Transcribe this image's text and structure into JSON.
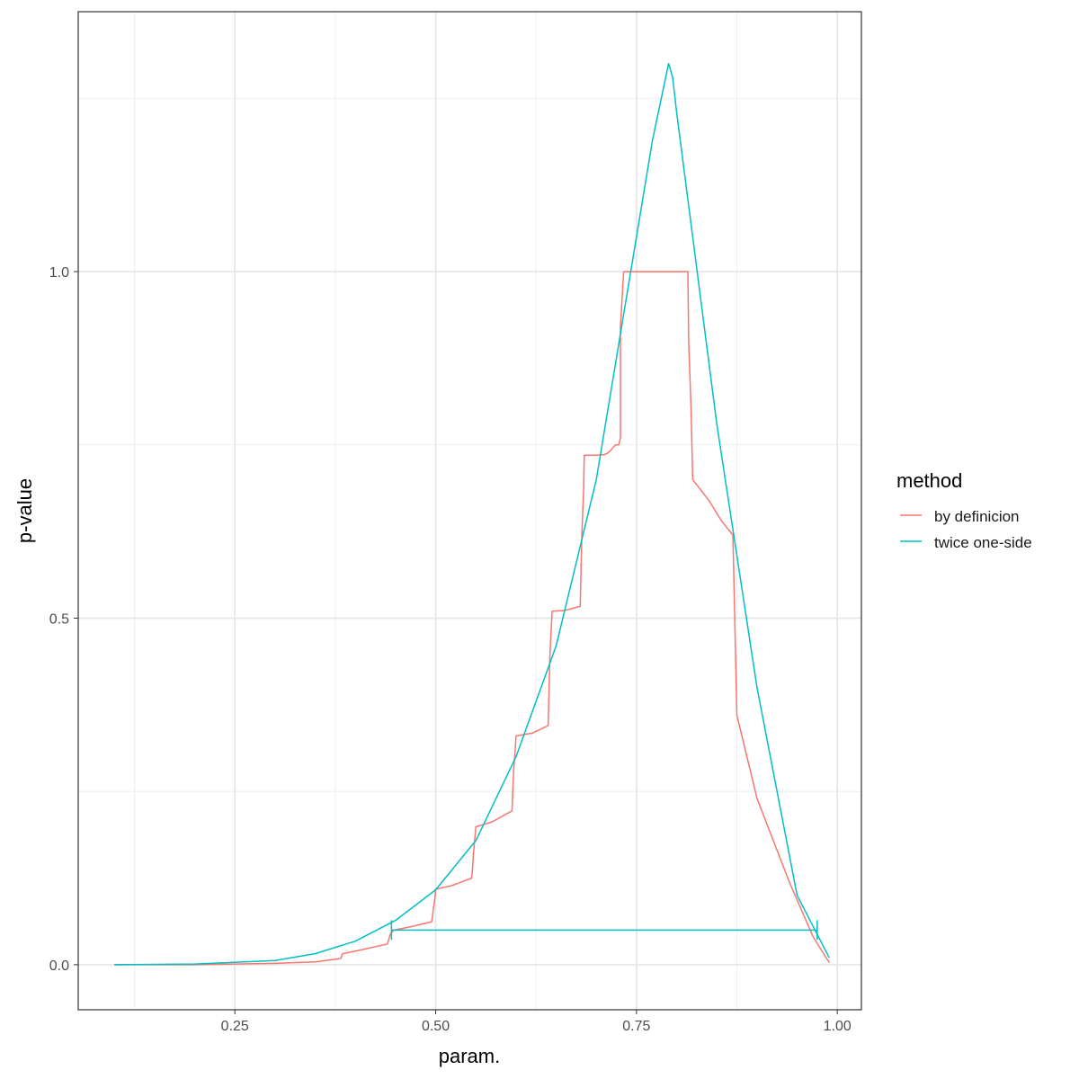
{
  "chart_data": {
    "type": "line",
    "xlabel": "param.",
    "ylabel": "p-value",
    "xlim": [
      0.055,
      1.03
    ],
    "ylim": [
      -0.065,
      1.375
    ],
    "x_ticks": [
      0.25,
      0.5,
      0.75,
      1.0
    ],
    "x_tick_labels": [
      "0.25",
      "0.50",
      "0.75",
      "1.00"
    ],
    "y_ticks": [
      0.0,
      0.5,
      1.0
    ],
    "y_tick_labels": [
      "0.0",
      "0.5",
      "1.0"
    ],
    "grid": true,
    "legend": {
      "title": "method",
      "position": "right",
      "entries": [
        {
          "name": "by definicion",
          "color": "#F8766D"
        },
        {
          "name": "twice one-side",
          "color": "#00BFC4"
        }
      ]
    },
    "series": [
      {
        "name": "by definicion",
        "color": "#F8766D",
        "x": [
          0.1,
          0.2,
          0.3,
          0.35,
          0.382,
          0.384,
          0.41,
          0.44,
          0.442,
          0.444,
          0.448,
          0.47,
          0.495,
          0.496,
          0.497,
          0.499,
          0.5,
          0.52,
          0.545,
          0.546,
          0.547,
          0.549,
          0.55,
          0.57,
          0.595,
          0.596,
          0.597,
          0.599,
          0.6,
          0.62,
          0.64,
          0.641,
          0.642,
          0.644,
          0.645,
          0.66,
          0.68,
          0.681,
          0.682,
          0.684,
          0.685,
          0.7,
          0.71,
          0.712,
          0.714,
          0.716,
          0.718,
          0.72,
          0.724,
          0.728,
          0.73,
          0.73,
          0.734,
          0.77,
          0.814,
          0.815,
          0.818,
          0.82,
          0.84,
          0.856,
          0.87,
          0.875,
          0.9,
          0.94,
          0.97,
          0.99
        ],
        "y": [
          0.0,
          0.0,
          0.002,
          0.004,
          0.009,
          0.016,
          0.022,
          0.03,
          0.038,
          0.045,
          0.05,
          0.055,
          0.062,
          0.07,
          0.08,
          0.095,
          0.109,
          0.114,
          0.125,
          0.14,
          0.16,
          0.185,
          0.199,
          0.206,
          0.222,
          0.25,
          0.28,
          0.31,
          0.33,
          0.334,
          0.345,
          0.39,
          0.44,
          0.49,
          0.51,
          0.511,
          0.517,
          0.57,
          0.62,
          0.68,
          0.735,
          0.735,
          0.736,
          0.737,
          0.738,
          0.74,
          0.742,
          0.745,
          0.75,
          0.75,
          0.76,
          0.92,
          1.0,
          1.0,
          1.0,
          0.9,
          0.8,
          0.7,
          0.67,
          0.64,
          0.62,
          0.36,
          0.24,
          0.12,
          0.04,
          0.003
        ]
      },
      {
        "name": "twice one-side",
        "color": "#00BFC4",
        "x": [
          0.1,
          0.2,
          0.3,
          0.35,
          0.4,
          0.45,
          0.5,
          0.55,
          0.6,
          0.65,
          0.7,
          0.74,
          0.77,
          0.79,
          0.795,
          0.8,
          0.85,
          0.9,
          0.95,
          0.99
        ],
        "y": [
          0.0,
          0.001,
          0.006,
          0.016,
          0.034,
          0.064,
          0.108,
          0.179,
          0.3,
          0.46,
          0.7,
          0.98,
          1.19,
          1.3,
          1.28,
          1.23,
          0.78,
          0.4,
          0.1,
          0.01
        ]
      }
    ],
    "interval": {
      "series": "twice one-side",
      "color": "#00BFC4",
      "x_low": 0.445,
      "x_high": 0.975,
      "y": 0.05
    }
  }
}
